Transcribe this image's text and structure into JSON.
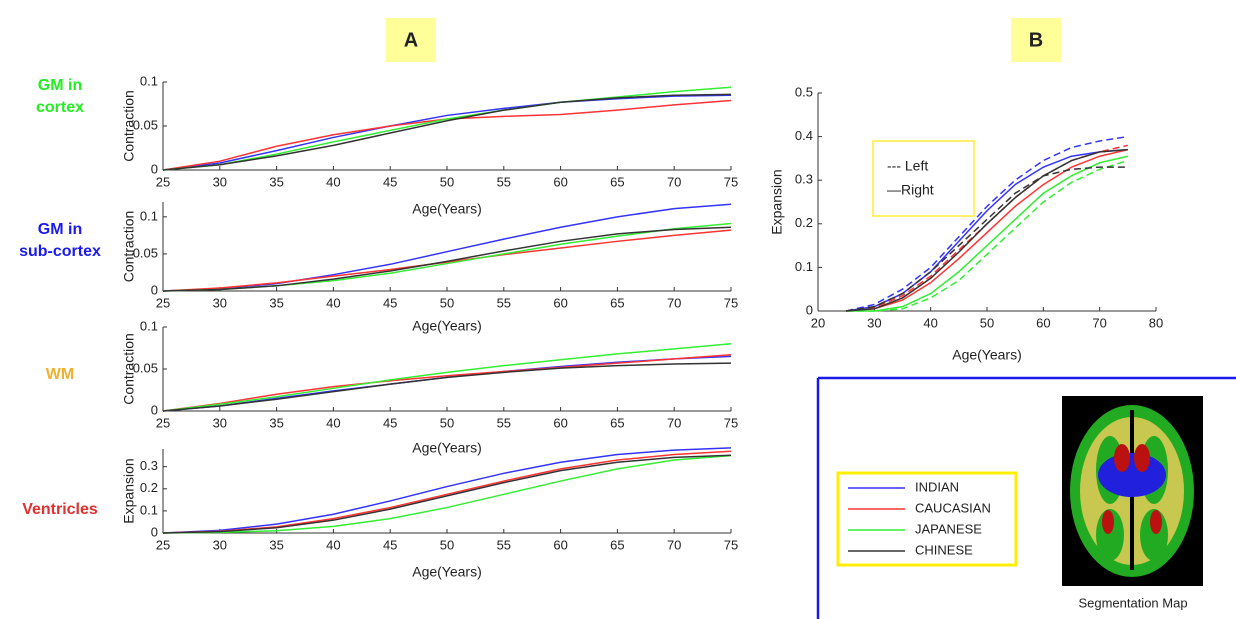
{
  "panel_labels": [
    "A",
    "B"
  ],
  "chart_data": [
    {
      "type": "line",
      "row_label": [
        "GM in",
        "cortex"
      ],
      "row_label_color": "#22ee22",
      "ylabel": "Contraction",
      "xlabel": "Age(Years)",
      "x": [
        25,
        30,
        35,
        40,
        45,
        50,
        55,
        60,
        65,
        70,
        75
      ],
      "xlim": [
        25,
        75
      ],
      "xticks": [
        25,
        30,
        35,
        40,
        45,
        50,
        55,
        60,
        65,
        70,
        75
      ],
      "ylim": [
        0,
        0.1
      ],
      "yticks": [
        0,
        0.05,
        0.1
      ],
      "series": [
        {
          "color": "#3333ff",
          "values": [
            0,
            0.008,
            0.022,
            0.037,
            0.05,
            0.062,
            0.07,
            0.077,
            0.081,
            0.084,
            0.085
          ]
        },
        {
          "color": "#ff3333",
          "values": [
            0,
            0.01,
            0.027,
            0.04,
            0.05,
            0.058,
            0.061,
            0.063,
            0.068,
            0.074,
            0.079
          ]
        },
        {
          "color": "#33ee33",
          "values": [
            0,
            0.006,
            0.018,
            0.032,
            0.045,
            0.058,
            0.068,
            0.077,
            0.083,
            0.089,
            0.094
          ]
        },
        {
          "color": "#333333",
          "values": [
            0,
            0.006,
            0.016,
            0.028,
            0.042,
            0.056,
            0.068,
            0.077,
            0.082,
            0.085,
            0.086
          ]
        }
      ]
    },
    {
      "type": "line",
      "row_label": [
        "GM in",
        "sub-cortex"
      ],
      "row_label_color": "#1a1aee",
      "ylabel": "Contraction",
      "xlabel": "Age(Years)",
      "x": [
        25,
        30,
        35,
        40,
        45,
        50,
        55,
        60,
        65,
        70,
        75
      ],
      "xlim": [
        25,
        75
      ],
      "xticks": [
        25,
        30,
        35,
        40,
        45,
        50,
        55,
        60,
        65,
        70,
        75
      ],
      "ylim": [
        0,
        0.12
      ],
      "yticks": [
        0,
        0.05,
        0.1
      ],
      "series": [
        {
          "color": "#3333ff",
          "values": [
            0,
            0.003,
            0.01,
            0.022,
            0.036,
            0.053,
            0.07,
            0.086,
            0.1,
            0.111,
            0.117
          ]
        },
        {
          "color": "#ff3333",
          "values": [
            0,
            0.004,
            0.011,
            0.02,
            0.029,
            0.039,
            0.049,
            0.058,
            0.067,
            0.075,
            0.082
          ]
        },
        {
          "color": "#33ee33",
          "values": [
            0,
            0.002,
            0.007,
            0.014,
            0.024,
            0.037,
            0.05,
            0.063,
            0.074,
            0.084,
            0.091
          ]
        },
        {
          "color": "#333333",
          "values": [
            0,
            0.002,
            0.007,
            0.016,
            0.027,
            0.04,
            0.054,
            0.067,
            0.077,
            0.083,
            0.086
          ]
        }
      ]
    },
    {
      "type": "line",
      "row_label": [
        "WM"
      ],
      "row_label_color": "#f0b030",
      "ylabel": "Contraction",
      "xlabel": "Age(Years)",
      "x": [
        25,
        30,
        35,
        40,
        45,
        50,
        55,
        60,
        65,
        70,
        75
      ],
      "xlim": [
        25,
        75
      ],
      "xticks": [
        25,
        30,
        35,
        40,
        45,
        50,
        55,
        60,
        65,
        70,
        75
      ],
      "ylim": [
        0,
        0.1
      ],
      "yticks": [
        0,
        0.05,
        0.1
      ],
      "series": [
        {
          "color": "#3333ff",
          "values": [
            0,
            0.006,
            0.015,
            0.024,
            0.032,
            0.04,
            0.047,
            0.053,
            0.058,
            0.062,
            0.065
          ]
        },
        {
          "color": "#ff3333",
          "values": [
            0,
            0.009,
            0.02,
            0.029,
            0.036,
            0.042,
            0.047,
            0.052,
            0.057,
            0.062,
            0.067
          ]
        },
        {
          "color": "#33ee33",
          "values": [
            0,
            0.008,
            0.017,
            0.027,
            0.037,
            0.046,
            0.054,
            0.061,
            0.068,
            0.074,
            0.08
          ]
        },
        {
          "color": "#333333",
          "values": [
            0,
            0.006,
            0.014,
            0.023,
            0.032,
            0.04,
            0.046,
            0.051,
            0.054,
            0.056,
            0.057
          ]
        }
      ]
    },
    {
      "type": "line",
      "row_label": [
        "Ventricles"
      ],
      "row_label_color": "#e03030",
      "ylabel": "Expansion",
      "xlabel": "Age(Years)",
      "x": [
        25,
        30,
        35,
        40,
        45,
        50,
        55,
        60,
        65,
        70,
        75
      ],
      "xlim": [
        25,
        75
      ],
      "xticks": [
        25,
        30,
        35,
        40,
        45,
        50,
        55,
        60,
        65,
        70,
        75
      ],
      "ylim": [
        0,
        0.38
      ],
      "yticks": [
        0,
        0.1,
        0.2,
        0.3
      ],
      "series": [
        {
          "color": "#3333ff",
          "values": [
            0,
            0.012,
            0.04,
            0.085,
            0.145,
            0.21,
            0.27,
            0.32,
            0.355,
            0.375,
            0.385
          ]
        },
        {
          "color": "#ff3333",
          "values": [
            0,
            0.008,
            0.028,
            0.065,
            0.115,
            0.175,
            0.235,
            0.29,
            0.33,
            0.355,
            0.37
          ]
        },
        {
          "color": "#33ee33",
          "values": [
            0,
            0.003,
            0.01,
            0.03,
            0.065,
            0.115,
            0.175,
            0.235,
            0.29,
            0.33,
            0.35
          ]
        },
        {
          "color": "#333333",
          "values": [
            0,
            0.006,
            0.024,
            0.058,
            0.108,
            0.168,
            0.228,
            0.282,
            0.32,
            0.342,
            0.352
          ]
        }
      ]
    },
    {
      "type": "line",
      "ylabel": "Expansion",
      "xlabel": "Age(Years)",
      "style_legend": [
        "--- Left",
        "—Right"
      ],
      "x": [
        25,
        30,
        35,
        40,
        45,
        50,
        55,
        60,
        65,
        70,
        75
      ],
      "xlim": [
        20,
        80
      ],
      "xticks": [
        20,
        30,
        40,
        50,
        60,
        70,
        80
      ],
      "ylim": [
        0,
        0.5
      ],
      "yticks": [
        0,
        0.1,
        0.2,
        0.3,
        0.4,
        0.5
      ],
      "series": [
        {
          "color": "#3333ff",
          "dash": true,
          "values": [
            0,
            0.015,
            0.05,
            0.1,
            0.17,
            0.24,
            0.3,
            0.345,
            0.375,
            0.39,
            0.4
          ]
        },
        {
          "color": "#3333ff",
          "dash": false,
          "values": [
            0,
            0.01,
            0.04,
            0.09,
            0.16,
            0.23,
            0.29,
            0.33,
            0.355,
            0.365,
            0.37
          ]
        },
        {
          "color": "#ff3333",
          "dash": true,
          "values": [
            0,
            0.008,
            0.035,
            0.08,
            0.14,
            0.2,
            0.26,
            0.31,
            0.345,
            0.365,
            0.38
          ]
        },
        {
          "color": "#ff3333",
          "dash": false,
          "values": [
            0,
            0.005,
            0.025,
            0.065,
            0.12,
            0.18,
            0.24,
            0.29,
            0.33,
            0.355,
            0.37
          ]
        },
        {
          "color": "#33ee33",
          "dash": true,
          "values": [
            0,
            0,
            0.005,
            0.03,
            0.07,
            0.13,
            0.19,
            0.25,
            0.295,
            0.325,
            0.345
          ]
        },
        {
          "color": "#33ee33",
          "dash": false,
          "values": [
            0,
            0,
            0.01,
            0.04,
            0.09,
            0.15,
            0.21,
            0.27,
            0.31,
            0.34,
            0.355
          ]
        },
        {
          "color": "#333333",
          "dash": true,
          "values": [
            0,
            0.01,
            0.04,
            0.09,
            0.15,
            0.21,
            0.27,
            0.31,
            0.325,
            0.33,
            0.33
          ]
        },
        {
          "color": "#333333",
          "dash": false,
          "values": [
            0,
            0.005,
            0.03,
            0.075,
            0.135,
            0.2,
            0.26,
            0.31,
            0.345,
            0.365,
            0.37
          ]
        }
      ]
    }
  ],
  "legend": [
    {
      "name": "INDIAN",
      "color": "#3333ff"
    },
    {
      "name": "CAUCASIAN",
      "color": "#ff3333"
    },
    {
      "name": "JAPANESE",
      "color": "#33ee33"
    },
    {
      "name": "CHINESE",
      "color": "#333333"
    }
  ],
  "segmentation": {
    "caption": "Segmentation Map"
  }
}
